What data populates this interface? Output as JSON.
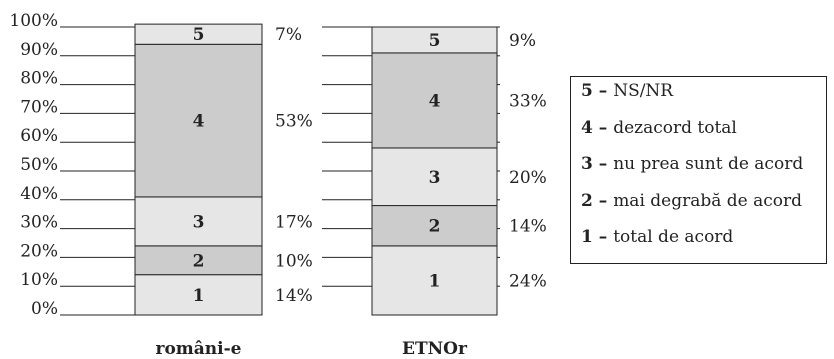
{
  "chart_data": {
    "type": "bar",
    "stacked": true,
    "categories": [
      "români-e",
      "ETNOr"
    ],
    "series": [
      {
        "name": "1 – total de acord",
        "key": "1",
        "values": [
          14,
          24
        ],
        "color": "#e6e6e6"
      },
      {
        "name": "2 – mai degrabă de acord",
        "key": "2",
        "values": [
          10,
          14
        ],
        "color": "#cccccc"
      },
      {
        "name": "3 – nu prea sunt de acord",
        "key": "3",
        "values": [
          17,
          20
        ],
        "color": "#e6e6e6"
      },
      {
        "name": "4 – dezacord total",
        "key": "4",
        "values": [
          53,
          33
        ],
        "color": "#cccccc"
      },
      {
        "name": "5 – NS/NR",
        "key": "5",
        "values": [
          7,
          9
        ],
        "color": "#e6e6e6"
      }
    ],
    "data_labels": [
      [
        "14%",
        "10%",
        "17%",
        "53%",
        "7%"
      ],
      [
        "24%",
        "14%",
        "20%",
        "33%",
        "9%"
      ]
    ],
    "yticks": [
      "0%",
      "10%",
      "20%",
      "30%",
      "40%",
      "50%",
      "60%",
      "70%",
      "80%",
      "90%",
      "100%"
    ],
    "ylim": [
      0,
      100
    ],
    "title": "",
    "xlabel": "",
    "ylabel": "",
    "grid": true,
    "legend_position": "right"
  },
  "legend": {
    "items": [
      {
        "key": "5",
        "sep": " – ",
        "label": "NS/NR"
      },
      {
        "key": "4",
        "sep": " – ",
        "label": "dezacord total"
      },
      {
        "key": "3",
        "sep": " – ",
        "label": "nu prea sunt de acord"
      },
      {
        "key": "2",
        "sep": " – ",
        "label": "mai degrabă de acord"
      },
      {
        "key": "1",
        "sep": " – ",
        "label": "total de acord"
      }
    ]
  }
}
